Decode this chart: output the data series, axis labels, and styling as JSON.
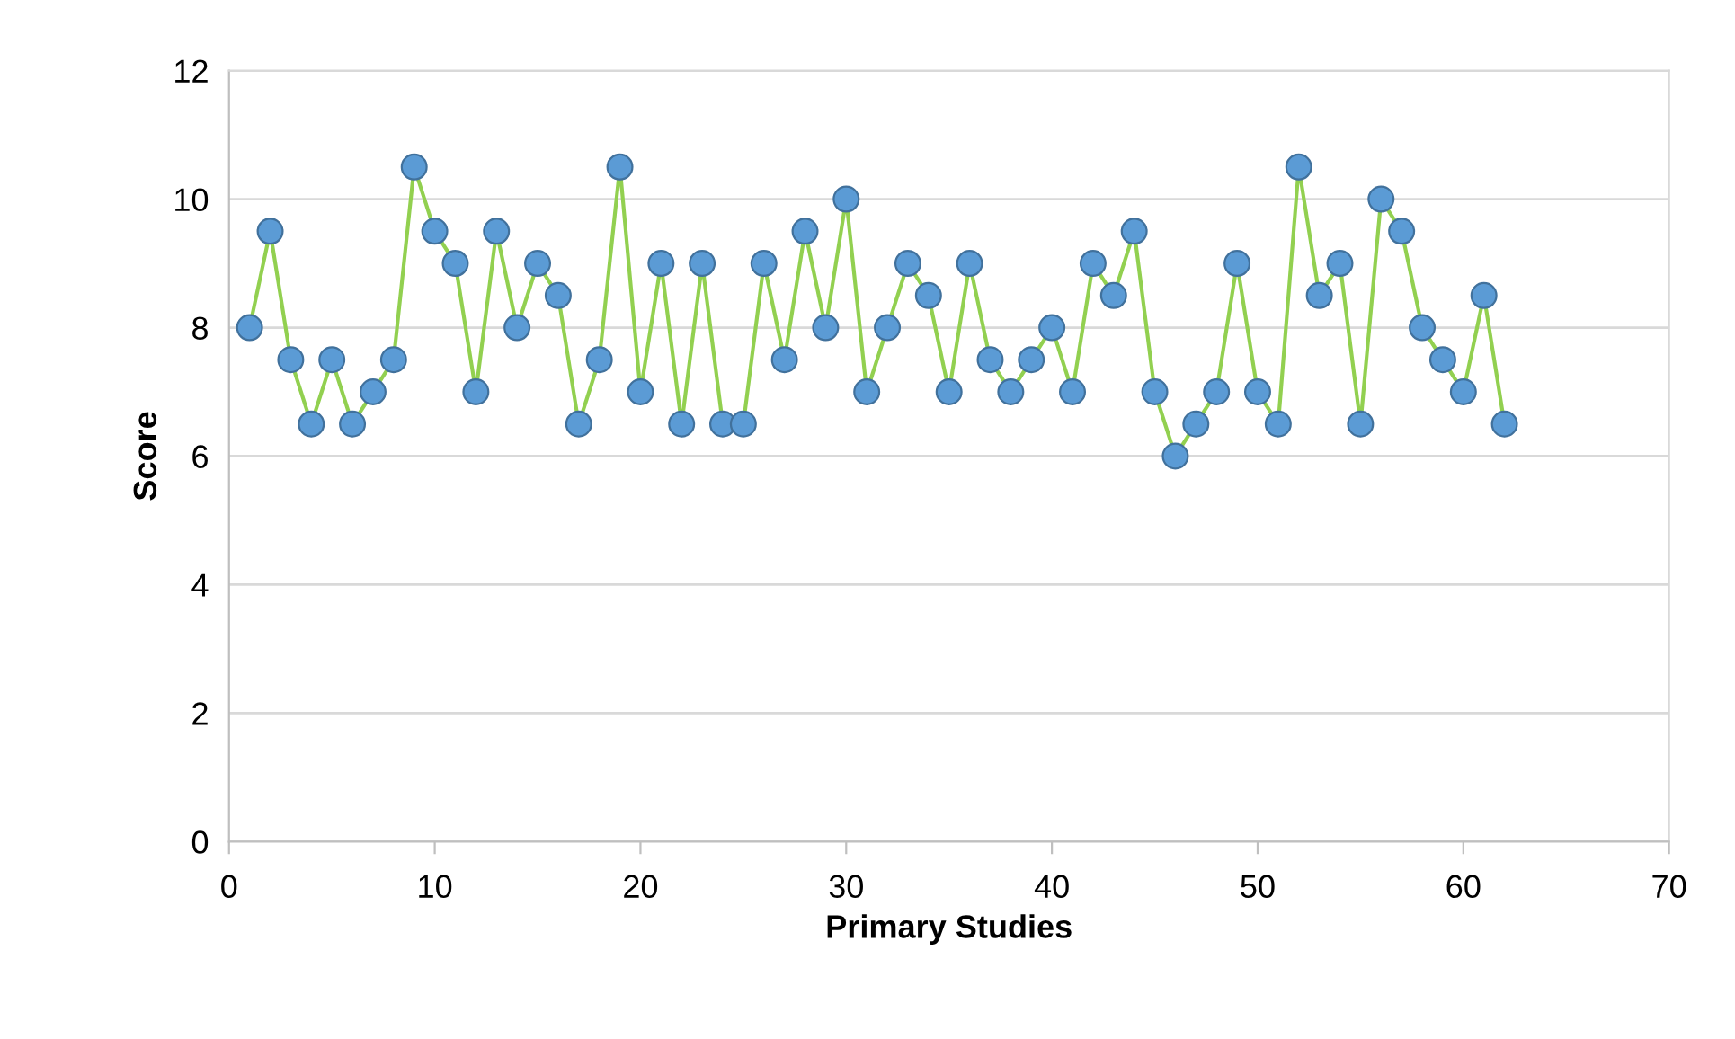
{
  "chart_data": {
    "type": "line",
    "xlabel": "Primary Studies",
    "ylabel": "Score",
    "x": [
      1,
      2,
      3,
      4,
      5,
      6,
      7,
      8,
      9,
      10,
      11,
      12,
      13,
      14,
      15,
      16,
      17,
      18,
      19,
      20,
      21,
      22,
      23,
      24,
      25,
      26,
      27,
      28,
      29,
      30,
      31,
      32,
      33,
      34,
      35,
      36,
      37,
      38,
      39,
      40,
      41,
      42,
      43,
      44,
      45,
      46,
      47,
      48,
      49,
      50,
      51,
      52,
      53,
      54,
      55,
      56,
      57,
      58,
      59,
      60,
      61,
      62
    ],
    "series": [
      {
        "color": "#92d050",
        "colors": [
          "#5b9bd5",
          "#5b9bd5",
          "#5b9bd5",
          "#5b9bd5",
          "#5b9bd5",
          "#5b9bd5",
          "#5b9bd5",
          "#5b9bd5",
          "#5b9bd5",
          "#5b9bd5",
          "#5b9bd5",
          "#5b9bd5",
          "#5b9bd5",
          "#5b9bd5",
          "#5b9bd5",
          "#5b9bd5",
          "#5b9bd5",
          "#5b9bd5",
          "#5b9bd5",
          "#5b9bd5",
          "#5b9bd5",
          "#5b9bd5",
          "#5b9bd5",
          "#5b9bd5",
          "#5b9bd5",
          "#5b9bd5",
          "#5b9bd5",
          "#5b9bd5",
          "#5b9bd5",
          "#5b9bd5",
          "#5b9bd5",
          "#5b9bd5",
          "#5b9bd5",
          "#5b9bd5",
          "#5b9bd5",
          "#5b9bd5",
          "#5b9bd5",
          "#5b9bd5",
          "#5b9bd5",
          "#5b9bd5",
          "#5b9bd5",
          "#5b9bd5",
          "#5b9bd5",
          "#5b9bd5",
          "#5b9bd5",
          "#5b9bd5",
          "#5b9bd5",
          "#5b9bd5",
          "#5b9bd5",
          "#5b9bd5",
          "#5b9bd5",
          "#5b9bd5",
          "#5b9bd5",
          "#5b9bd5",
          "#5b9bd5",
          "#5b9bd5",
          "#5b9bd5",
          "#5b9bd5",
          "#5b9bd5",
          "#5b9bd5",
          "#5b9bd5",
          "#5b9bd5"
        ],
        "values": [
          8,
          9.5,
          7.5,
          6.5,
          7.5,
          6.5,
          7,
          7.5,
          10.5,
          9.5,
          9,
          7,
          9.5,
          8,
          9,
          8.5,
          6.5,
          7.5,
          10.5,
          7,
          9,
          6.5,
          9,
          6.5,
          6.5,
          9,
          7.5,
          9.5,
          8,
          10,
          7,
          8,
          9,
          8.5,
          7,
          9,
          7.5,
          7,
          7.5,
          8,
          7,
          9,
          8.5,
          9.5,
          7,
          6,
          6.5,
          7,
          9,
          7,
          6.5,
          10.5,
          8.5,
          9,
          6.5,
          10,
          9.5,
          8,
          7.5,
          7,
          8.5,
          6.5
        ]
      }
    ],
    "xlim": [
      0,
      70
    ],
    "xticks": [
      0,
      10,
      20,
      30,
      40,
      50,
      60,
      70
    ],
    "ylim": [
      0,
      12
    ],
    "yticks": [
      0,
      2,
      4,
      6,
      8,
      10,
      12
    ],
    "grid": "y",
    "marker": "circle",
    "line_style": "solid",
    "legend": false
  }
}
